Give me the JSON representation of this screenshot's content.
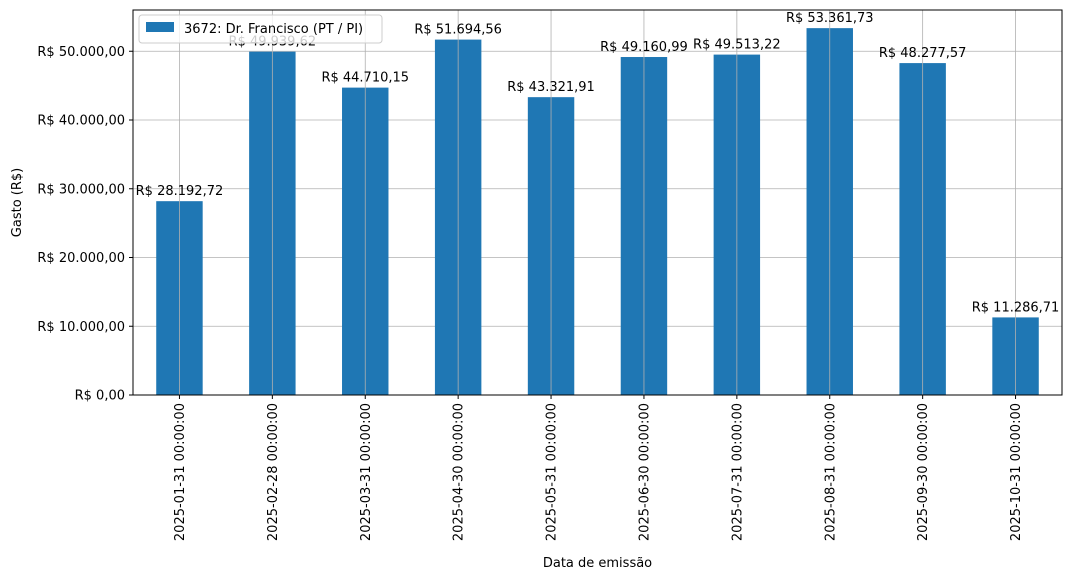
{
  "chart_data": {
    "type": "bar",
    "categories": [
      "2025-01-31 00:00:00",
      "2025-02-28 00:00:00",
      "2025-03-31 00:00:00",
      "2025-04-30 00:00:00",
      "2025-05-31 00:00:00",
      "2025-06-30 00:00:00",
      "2025-07-31 00:00:00",
      "2025-08-31 00:00:00",
      "2025-09-30 00:00:00",
      "2025-10-31 00:00:00"
    ],
    "series": [
      {
        "name": "3672: Dr. Francisco (PT / PI)",
        "color": "#1f77b4",
        "values": [
          28192.72,
          49939.62,
          44710.15,
          51694.56,
          43321.91,
          49160.99,
          49513.22,
          53361.73,
          48277.57,
          11286.71
        ],
        "labels": [
          "R$ 28.192,72",
          "R$ 49.939,62",
          "R$ 44.710,15",
          "R$ 51.694,56",
          "R$ 43.321,91",
          "R$ 49.160,99",
          "R$ 49.513,22",
          "R$ 53.361,73",
          "R$ 48.277,57",
          "R$ 11.286,71"
        ]
      }
    ],
    "yticks": [
      0,
      10000,
      20000,
      30000,
      40000,
      50000
    ],
    "ytick_labels": [
      "R$ 0,00",
      "R$ 10.000,00",
      "R$ 20.000,00",
      "R$ 30.000,00",
      "R$ 40.000,00",
      "R$ 50.000,00"
    ],
    "ylim": [
      0,
      56000
    ],
    "xlabel": "Data de emissão",
    "ylabel": "Gasto (R$)",
    "grid": true,
    "legend_position": "top-left"
  }
}
